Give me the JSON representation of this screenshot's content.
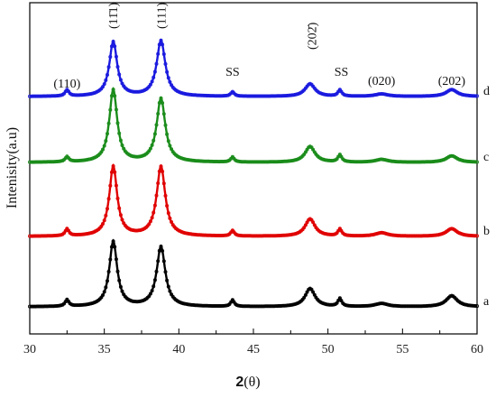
{
  "chart_data": {
    "type": "line",
    "title": "",
    "xlabel_main": "2",
    "xlabel_theta": "(θ)",
    "ylabel": "Intenisity(a.u)",
    "xlim": [
      30,
      60
    ],
    "xticks": [
      30,
      35,
      40,
      45,
      50,
      55,
      60
    ],
    "peak_labels": [
      {
        "text": "(110)",
        "x": 32.5
      },
      {
        "text": "(11̄1)",
        "x": 35.55
      },
      {
        "text": "(111)",
        "x": 38.8
      },
      {
        "text": "SS",
        "x": 43.6
      },
      {
        "text": "(202̄)",
        "x": 48.9
      },
      {
        "text": "SS",
        "x": 50.9
      },
      {
        "text": "(020)",
        "x": 53.6
      },
      {
        "text": "(202)",
        "x": 58.3
      }
    ],
    "series": [
      {
        "name": "a",
        "color": "#000000",
        "baseline": 0.0,
        "peak_heights": [
          0.1,
          1.0,
          0.92,
          0.1,
          0.28,
          0.12,
          0.05,
          0.17
        ]
      },
      {
        "name": "b",
        "color": "#e00000",
        "baseline": 1.0,
        "peak_heights": [
          0.1,
          1.0,
          1.0,
          0.08,
          0.25,
          0.1,
          0.05,
          0.11
        ]
      },
      {
        "name": "c",
        "color": "#1a8c1a",
        "baseline": 2.0,
        "peak_heights": [
          0.07,
          1.0,
          0.88,
          0.07,
          0.22,
          0.1,
          0.04,
          0.09
        ]
      },
      {
        "name": "d",
        "color": "#1a1adf",
        "baseline": 3.0,
        "peak_heights": [
          0.1,
          0.86,
          0.88,
          0.07,
          0.2,
          0.1,
          0.04,
          0.11
        ]
      }
    ],
    "peak_positions": [
      32.5,
      35.6,
      38.8,
      43.6,
      48.8,
      50.8,
      53.6,
      58.3
    ],
    "peak_widths": [
      0.15,
      0.32,
      0.35,
      0.14,
      0.4,
      0.15,
      0.5,
      0.45
    ]
  }
}
